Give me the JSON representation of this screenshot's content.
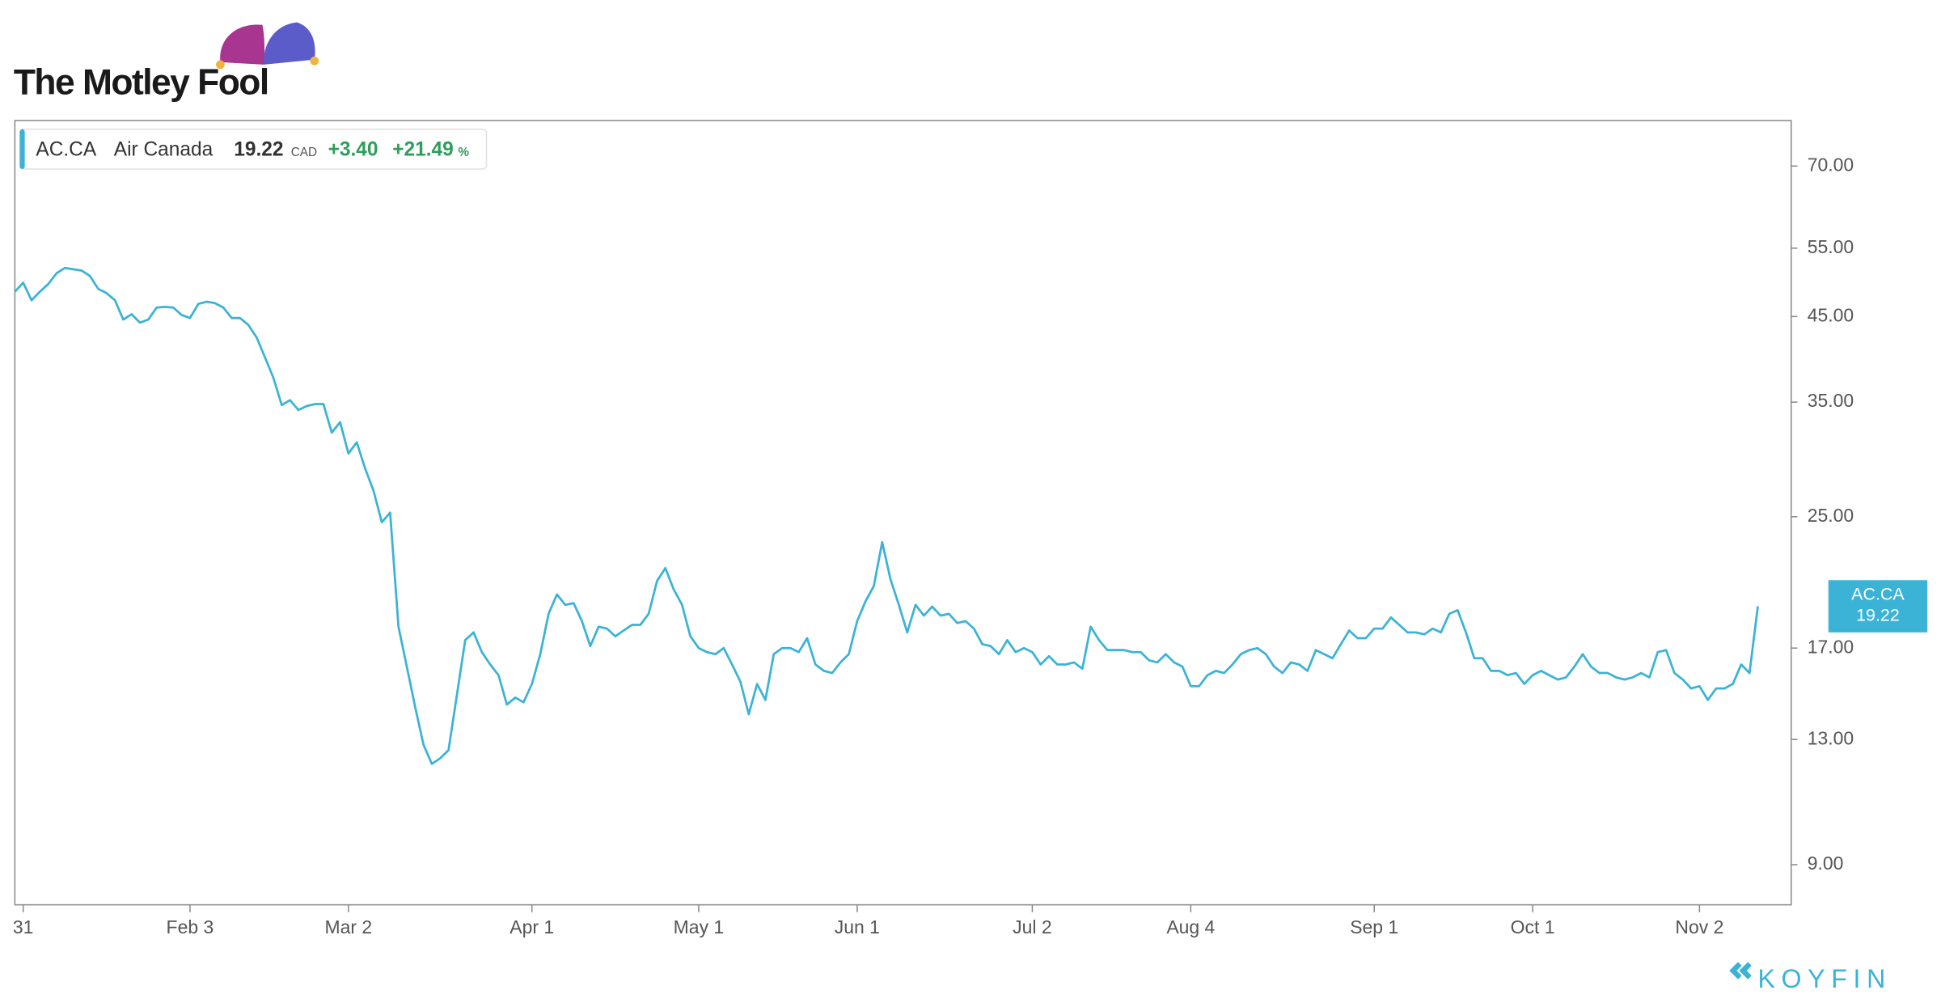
{
  "brand": {
    "logo_text": "The Motley Fool",
    "source": "KOYFIN"
  },
  "chart_data": {
    "type": "line",
    "name": "Air Canada",
    "last_price": 19.22,
    "currency": "CAD",
    "change": "+3.40",
    "change_pct": "+21.49",
    "pct_unit": "%",
    "series": [
      {
        "name": "AC.CA",
        "color": "#3bb3d6",
        "values": [
          48.4,
          49.7,
          47.2,
          48.4,
          49.5,
          51.1,
          51.9,
          51.7,
          51.5,
          50.7,
          48.8,
          48.2,
          47.2,
          44.6,
          45.3,
          44.2,
          44.6,
          46.2,
          46.3,
          46.2,
          45.2,
          44.8,
          46.7,
          47.0,
          46.8,
          46.2,
          44.8,
          44.8,
          43.9,
          42.3,
          39.9,
          37.6,
          34.7,
          35.2,
          34.2,
          34.6,
          34.8,
          34.8,
          32.0,
          33.0,
          30.1,
          31.1,
          28.8,
          27.0,
          24.6,
          25.3,
          18.1,
          16.1,
          14.3,
          12.8,
          12.1,
          12.3,
          12.6,
          14.8,
          17.4,
          17.8,
          16.8,
          16.2,
          15.7,
          14.4,
          14.7,
          14.5,
          15.3,
          16.7,
          18.8,
          19.9,
          19.3,
          19.4,
          18.4,
          17.1,
          18.1,
          18.0,
          17.6,
          17.9,
          18.2,
          18.2,
          18.8,
          20.7,
          21.5,
          20.2,
          19.3,
          17.6,
          17.0,
          16.8,
          16.7,
          17.0,
          16.2,
          15.4,
          14.0,
          15.3,
          14.6,
          16.7,
          17.0,
          17.0,
          16.8,
          17.5,
          16.2,
          15.9,
          15.8,
          16.3,
          16.7,
          18.4,
          19.5,
          20.4,
          23.2,
          20.8,
          19.3,
          17.8,
          19.3,
          18.7,
          19.2,
          18.7,
          18.8,
          18.3,
          18.4,
          18.0,
          17.2,
          17.1,
          16.7,
          17.4,
          16.8,
          17.0,
          16.8,
          16.2,
          16.6,
          16.2,
          16.2,
          16.3,
          16.0,
          18.1,
          17.4,
          16.9,
          16.9,
          16.9,
          16.8,
          16.8,
          16.4,
          16.3,
          16.7,
          16.3,
          16.1,
          15.2,
          15.2,
          15.7,
          15.9,
          15.8,
          16.2,
          16.7,
          16.9,
          17.0,
          16.7,
          16.1,
          15.8,
          16.3,
          16.2,
          15.9,
          16.9,
          16.7,
          16.5,
          17.2,
          17.9,
          17.5,
          17.5,
          18.0,
          18.0,
          18.6,
          18.2,
          17.8,
          17.8,
          17.7,
          18.0,
          17.8,
          18.8,
          19.0,
          17.8,
          16.5,
          16.5,
          15.9,
          15.9,
          15.7,
          15.8,
          15.3,
          15.7,
          15.9,
          15.7,
          15.5,
          15.6,
          16.1,
          16.7,
          16.1,
          15.8,
          15.8,
          15.6,
          15.5,
          15.6,
          15.8,
          15.6,
          16.8,
          16.9,
          15.8,
          15.5,
          15.1,
          15.2,
          14.6,
          15.1,
          15.1,
          15.3,
          16.2,
          15.8,
          19.22
        ]
      }
    ],
    "xlim": [
      0,
      213
    ],
    "xticks": [
      {
        "value": 1,
        "label": "31"
      },
      {
        "value": 21,
        "label": "Feb 3"
      },
      {
        "value": 40,
        "label": "Mar 2"
      },
      {
        "value": 62,
        "label": "Apr 1"
      },
      {
        "value": 82,
        "label": "May 1"
      },
      {
        "value": 101,
        "label": "Jun 1"
      },
      {
        "value": 122,
        "label": "Jul 2"
      },
      {
        "value": 141,
        "label": "Aug 4"
      },
      {
        "value": 163,
        "label": "Sep 1"
      },
      {
        "value": 182,
        "label": "Oct 1"
      },
      {
        "value": 202,
        "label": "Nov 2"
      }
    ],
    "ylim": [
      8,
      80
    ],
    "yticks": [
      {
        "value": 9,
        "label": "9.00"
      },
      {
        "value": 13,
        "label": "13.00"
      },
      {
        "value": 17,
        "label": "17.00"
      },
      {
        "value": 25,
        "label": "25.00"
      },
      {
        "value": 35,
        "label": "35.00"
      },
      {
        "value": 45,
        "label": "45.00"
      },
      {
        "value": 55,
        "label": "55.00"
      },
      {
        "value": 70,
        "label": "70.00"
      }
    ],
    "log_y": true,
    "y_axis_side": "right"
  }
}
